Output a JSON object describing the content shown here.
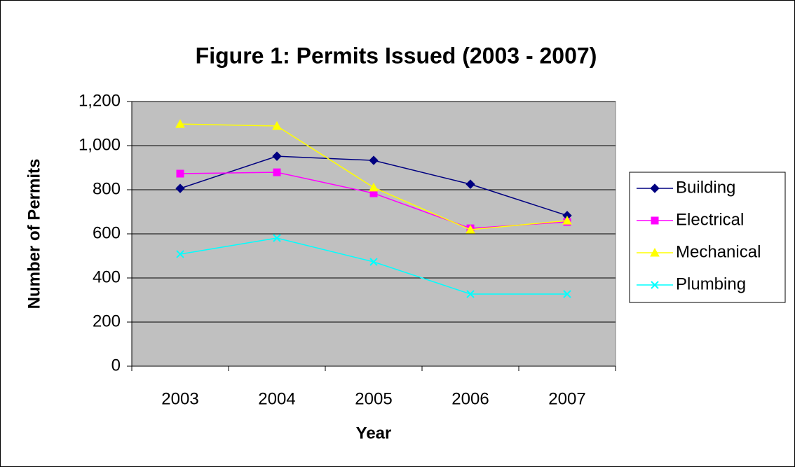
{
  "chart_data": {
    "type": "line",
    "title": "Figure 1:  Permits Issued (2003 - 2007)",
    "x_label": "Year",
    "y_label": "Number of Permits",
    "categories": [
      "2003",
      "2004",
      "2005",
      "2006",
      "2007"
    ],
    "series": [
      {
        "name": "Building",
        "color": "#000080",
        "marker": "diamond",
        "values": [
          806,
          952,
          933,
          825,
          683
        ]
      },
      {
        "name": "Electrical",
        "color": "#ff00ff",
        "marker": "square",
        "values": [
          873,
          879,
          784,
          625,
          654
        ]
      },
      {
        "name": "Mechanical",
        "color": "#ffff00",
        "marker": "triangle",
        "values": [
          1098,
          1089,
          810,
          619,
          660
        ]
      },
      {
        "name": "Plumbing",
        "color": "#00ffff",
        "marker": "x",
        "values": [
          508,
          581,
          473,
          327,
          327
        ]
      }
    ],
    "ylim": [
      0,
      1200
    ],
    "yticks": [
      0,
      200,
      400,
      600,
      800,
      {
        "value": 1000,
        "label": "1,000"
      },
      {
        "value": 1200,
        "label": "1,200"
      }
    ],
    "grid": true,
    "legend": "right",
    "plot_background": "#c0c0c0"
  }
}
